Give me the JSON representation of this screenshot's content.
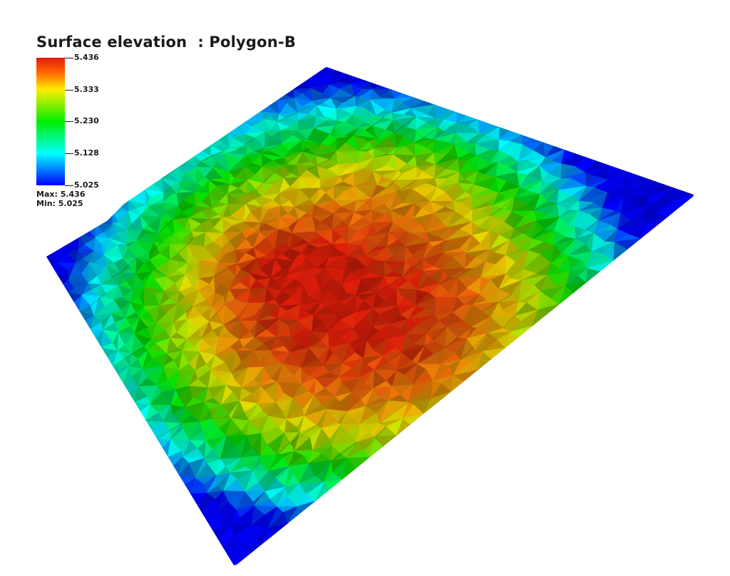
{
  "title": "Surface elevation  : Polygon-B",
  "colorbar": {
    "ticks": [
      "5.436",
      "5.333",
      "5.230",
      "5.128",
      "5.025"
    ],
    "max_label": "Max: 5.436",
    "min_label": "Min: 5.025",
    "colors": [
      "#e41a0c",
      "#ffff00",
      "#00ee00",
      "#00ffff",
      "#0000ff"
    ]
  },
  "surface": {
    "max": 5.436,
    "min": 5.025,
    "background": "#ffffff"
  }
}
